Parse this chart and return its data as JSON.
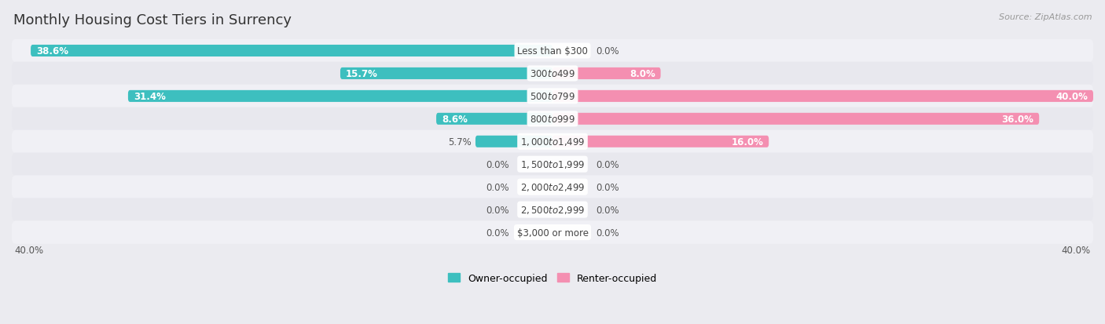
{
  "title": "Monthly Housing Cost Tiers in Surrency",
  "source": "Source: ZipAtlas.com",
  "categories": [
    "Less than $300",
    "$300 to $499",
    "$500 to $799",
    "$800 to $999",
    "$1,000 to $1,499",
    "$1,500 to $1,999",
    "$2,000 to $2,499",
    "$2,500 to $2,999",
    "$3,000 or more"
  ],
  "owner_values": [
    38.6,
    15.7,
    31.4,
    8.6,
    5.7,
    0.0,
    0.0,
    0.0,
    0.0
  ],
  "renter_values": [
    0.0,
    8.0,
    40.0,
    36.0,
    16.0,
    0.0,
    0.0,
    0.0,
    0.0
  ],
  "owner_color": "#3DBFBF",
  "renter_color": "#F48FB1",
  "bg_color": "#ebebf0",
  "row_bg_even": "#f0f0f5",
  "row_bg_odd": "#e8e8ee",
  "label_color": "#555555",
  "value_color_dark": "#555555",
  "axis_max": 40.0,
  "bar_height": 0.52,
  "title_fontsize": 13,
  "cat_fontsize": 8.5,
  "val_fontsize": 8.5,
  "source_fontsize": 8,
  "legend_fontsize": 9
}
